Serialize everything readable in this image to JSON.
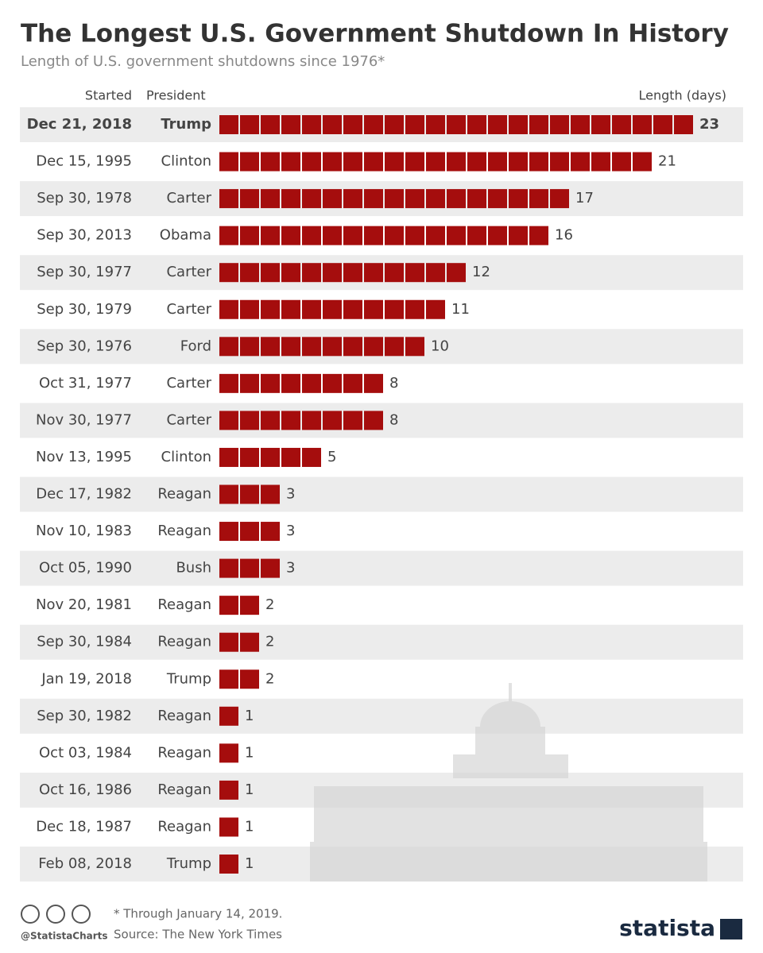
{
  "chart_data": {
    "type": "bar",
    "title": "The Longest U.S. Government Shutdown In History",
    "subtitle": "Length of U.S. government shutdowns since 1976*",
    "column_headers": [
      "Started",
      "President",
      "Length (days)"
    ],
    "categories": [
      "Dec 21, 2018",
      "Dec 15, 1995",
      "Sep 30, 1978",
      "Sep 30, 2013",
      "Sep 30, 1977",
      "Sep 30, 1979",
      "Sep 30, 1976",
      "Oct 31, 1977",
      "Nov 30, 1977",
      "Nov 13, 1995",
      "Dec 17, 1982",
      "Nov 10, 1983",
      "Oct 05, 1990",
      "Nov 20, 1981",
      "Sep 30, 1984",
      "Jan 19, 2018",
      "Sep 30, 1982",
      "Oct 03, 1984",
      "Oct 16, 1986",
      "Dec 18, 1987",
      "Feb 08, 2018"
    ],
    "presidents": [
      "Trump",
      "Clinton",
      "Carter",
      "Obama",
      "Carter",
      "Carter",
      "Ford",
      "Carter",
      "Carter",
      "Clinton",
      "Reagan",
      "Reagan",
      "Bush",
      "Reagan",
      "Reagan",
      "Trump",
      "Reagan",
      "Reagan",
      "Reagan",
      "Reagan",
      "Trump"
    ],
    "values": [
      23,
      21,
      17,
      16,
      12,
      11,
      10,
      8,
      8,
      5,
      3,
      3,
      3,
      2,
      2,
      2,
      1,
      1,
      1,
      1,
      1
    ],
    "color": "#a50d0d",
    "highlight": 0,
    "footnote": "* Through January 14, 2019.",
    "source": "Source: The New York Times",
    "handle": "@StatistaCharts",
    "brand": "statista"
  }
}
